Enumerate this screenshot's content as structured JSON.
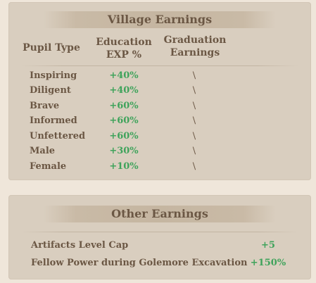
{
  "village": {
    "title": "Village Earnings",
    "headers": {
      "pupil_type": "Pupil Type",
      "education_exp_line1": "Education",
      "education_exp_line2": "EXP %",
      "graduation_line1": "Graduation",
      "graduation_line2": "Earnings"
    },
    "rows": [
      {
        "type": "Inspiring",
        "exp": "+40%",
        "grad": "\\"
      },
      {
        "type": "Diligent",
        "exp": "+40%",
        "grad": "\\"
      },
      {
        "type": "Brave",
        "exp": "+60%",
        "grad": "\\"
      },
      {
        "type": "Informed",
        "exp": "+60%",
        "grad": "\\"
      },
      {
        "type": "Unfettered",
        "exp": "+60%",
        "grad": "\\"
      },
      {
        "type": "Male",
        "exp": "+30%",
        "grad": "\\"
      },
      {
        "type": "Female",
        "exp": "+10%",
        "grad": "\\"
      }
    ]
  },
  "other": {
    "title": "Other Earnings",
    "rows": [
      {
        "label": "Artifacts Level Cap",
        "value": "+5"
      },
      {
        "label": "Fellow Power during Golemore Excavation",
        "value": "+150%"
      }
    ]
  },
  "colors": {
    "background": "#efe6da",
    "panel": "#d9cebf",
    "text": "#6b5744",
    "bonus_green": "#3fa35b"
  }
}
